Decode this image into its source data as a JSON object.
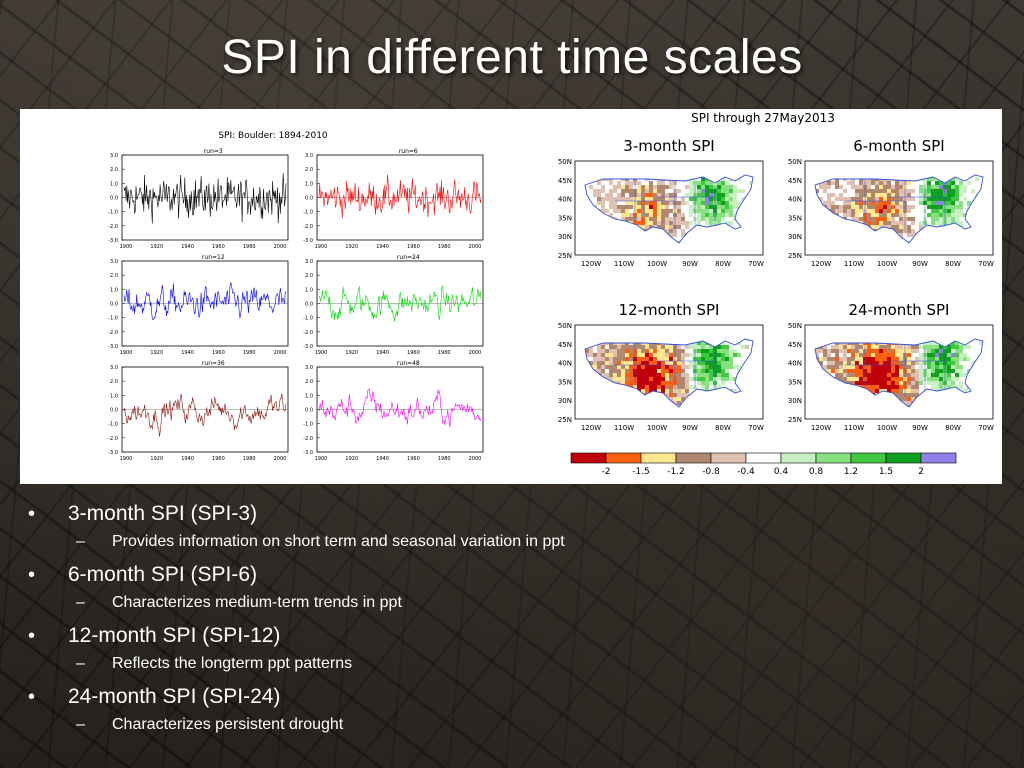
{
  "slide": {
    "title": "SPI in different time scales"
  },
  "left_figure": {
    "title": "SPI:  Boulder: 1894-2010",
    "x_ticks": [
      "1900",
      "1920",
      "1940",
      "1960",
      "1980",
      "2000"
    ],
    "y_ticks": [
      "3.0",
      "2.0",
      "1.0",
      "0.0",
      "-1.0",
      "-2.0",
      "-3.0"
    ],
    "panels": [
      {
        "label": "run=3",
        "color": "#000000"
      },
      {
        "label": "run=6",
        "color": "#ff0000"
      },
      {
        "label": "run=12",
        "color": "#0000ff"
      },
      {
        "label": "run=24",
        "color": "#00dd00"
      },
      {
        "label": "run=36",
        "color": "#8b1a10"
      },
      {
        "label": "run=48",
        "color": "#ff00ff"
      }
    ]
  },
  "right_figure": {
    "title": "SPI through 27May2013",
    "maps": [
      {
        "label": "3-month SPI"
      },
      {
        "label": "6-month SPI"
      },
      {
        "label": "12-month SPI"
      },
      {
        "label": "24-month SPI"
      }
    ],
    "lat_ticks": [
      "50N",
      "45N",
      "40N",
      "35N",
      "30N",
      "25N"
    ],
    "lon_ticks": [
      "120W",
      "110W",
      "100W",
      "90W",
      "80W",
      "70W"
    ],
    "legend_colors": [
      "#c0000a",
      "#ff6010",
      "#ffe890",
      "#b08870",
      "#e0c0b0",
      "#ffffff",
      "#c8f0c0",
      "#88e080",
      "#40c840",
      "#10a020",
      "#9080e8"
    ],
    "legend_labels": [
      "-2",
      "-1.5",
      "-1.2",
      "-0.8",
      "-0.4",
      "0.4",
      "0.8",
      "1.2",
      "1.5",
      "2"
    ]
  },
  "bullets": [
    {
      "text": "3-month SPI (SPI-3)",
      "sub": "Provides information on short term and seasonal variation in ppt"
    },
    {
      "text": "6-month SPI (SPI-6)",
      "sub": "Characterizes medium-term trends in ppt"
    },
    {
      "text": "12-month SPI (SPI-12)",
      "sub": "Reflects the longterm ppt patterns"
    },
    {
      "text": "24-month SPI (SPI-24)",
      "sub": "Characterizes persistent drought"
    }
  ],
  "bullet_glyph": "•",
  "sub_glyph": "–"
}
